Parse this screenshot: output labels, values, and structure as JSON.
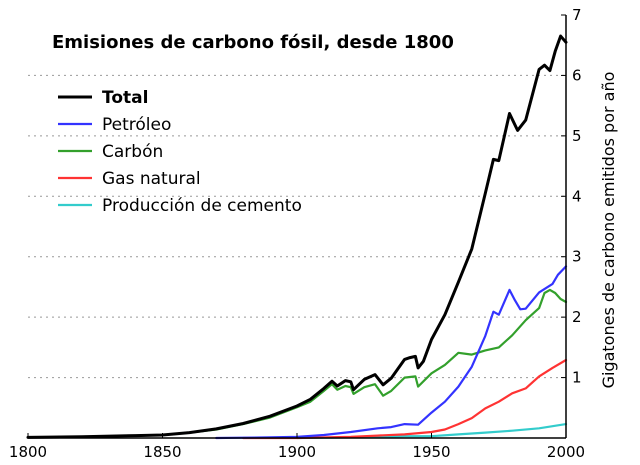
{
  "chart_data": {
    "type": "line",
    "title": "Emisiones de carbono fósil, desde  1800",
    "xlabel": "",
    "ylabel": "Gigatones de carbono emitidos por año",
    "xlim": [
      1800,
      2000
    ],
    "ylim": [
      0,
      7
    ],
    "x_ticks": [
      1800,
      1850,
      1900,
      1950,
      2000
    ],
    "y_ticks": [
      1,
      2,
      3,
      4,
      5,
      6,
      7
    ],
    "y_axis_side": "right",
    "grid": "dotted horizontal",
    "legend_position": "top-left",
    "series": [
      {
        "name": "Total",
        "color": "#000000",
        "points": [
          [
            1800,
            0.01
          ],
          [
            1820,
            0.02
          ],
          [
            1840,
            0.04
          ],
          [
            1850,
            0.05
          ],
          [
            1860,
            0.09
          ],
          [
            1870,
            0.15
          ],
          [
            1880,
            0.24
          ],
          [
            1890,
            0.36
          ],
          [
            1900,
            0.53
          ],
          [
            1905,
            0.64
          ],
          [
            1910,
            0.82
          ],
          [
            1913,
            0.94
          ],
          [
            1915,
            0.86
          ],
          [
            1918,
            0.95
          ],
          [
            1920,
            0.93
          ],
          [
            1921,
            0.8
          ],
          [
            1925,
            0.97
          ],
          [
            1929,
            1.05
          ],
          [
            1932,
            0.88
          ],
          [
            1935,
            0.99
          ],
          [
            1940,
            1.3
          ],
          [
            1942,
            1.33
          ],
          [
            1944,
            1.35
          ],
          [
            1945,
            1.16
          ],
          [
            1947,
            1.27
          ],
          [
            1950,
            1.63
          ],
          [
            1955,
            2.04
          ],
          [
            1960,
            2.58
          ],
          [
            1965,
            3.13
          ],
          [
            1970,
            4.05
          ],
          [
            1973,
            4.61
          ],
          [
            1975,
            4.59
          ],
          [
            1979,
            5.37
          ],
          [
            1982,
            5.09
          ],
          [
            1985,
            5.26
          ],
          [
            1990,
            6.1
          ],
          [
            1992,
            6.17
          ],
          [
            1994,
            6.08
          ],
          [
            1996,
            6.4
          ],
          [
            1998,
            6.65
          ],
          [
            1999,
            6.6
          ],
          [
            2000,
            6.55
          ]
        ]
      },
      {
        "name": "Petróleo",
        "color": "#3333ff",
        "points": [
          [
            1870,
            0.0
          ],
          [
            1890,
            0.01
          ],
          [
            1900,
            0.02
          ],
          [
            1910,
            0.05
          ],
          [
            1920,
            0.1
          ],
          [
            1930,
            0.16
          ],
          [
            1935,
            0.18
          ],
          [
            1940,
            0.23
          ],
          [
            1945,
            0.22
          ],
          [
            1950,
            0.42
          ],
          [
            1955,
            0.6
          ],
          [
            1960,
            0.85
          ],
          [
            1965,
            1.18
          ],
          [
            1970,
            1.69
          ],
          [
            1973,
            2.09
          ],
          [
            1975,
            2.04
          ],
          [
            1979,
            2.45
          ],
          [
            1981,
            2.28
          ],
          [
            1983,
            2.13
          ],
          [
            1985,
            2.14
          ],
          [
            1990,
            2.41
          ],
          [
            1995,
            2.55
          ],
          [
            1997,
            2.7
          ],
          [
            2000,
            2.84
          ]
        ]
      },
      {
        "name": "Carbón",
        "color": "#33a02c",
        "points": [
          [
            1800,
            0.01
          ],
          [
            1820,
            0.02
          ],
          [
            1840,
            0.04
          ],
          [
            1850,
            0.05
          ],
          [
            1860,
            0.09
          ],
          [
            1870,
            0.14
          ],
          [
            1880,
            0.23
          ],
          [
            1890,
            0.34
          ],
          [
            1900,
            0.51
          ],
          [
            1905,
            0.6
          ],
          [
            1910,
            0.78
          ],
          [
            1913,
            0.89
          ],
          [
            1915,
            0.8
          ],
          [
            1918,
            0.86
          ],
          [
            1920,
            0.84
          ],
          [
            1921,
            0.73
          ],
          [
            1925,
            0.84
          ],
          [
            1929,
            0.89
          ],
          [
            1932,
            0.7
          ],
          [
            1935,
            0.78
          ],
          [
            1940,
            1.0
          ],
          [
            1944,
            1.02
          ],
          [
            1945,
            0.85
          ],
          [
            1950,
            1.07
          ],
          [
            1955,
            1.21
          ],
          [
            1960,
            1.41
          ],
          [
            1965,
            1.38
          ],
          [
            1970,
            1.45
          ],
          [
            1975,
            1.5
          ],
          [
            1980,
            1.7
          ],
          [
            1985,
            1.95
          ],
          [
            1990,
            2.15
          ],
          [
            1992,
            2.4
          ],
          [
            1994,
            2.45
          ],
          [
            1996,
            2.4
          ],
          [
            1998,
            2.3
          ],
          [
            2000,
            2.25
          ]
        ]
      },
      {
        "name": "Gas natural",
        "color": "#ff3333",
        "points": [
          [
            1880,
            0.0
          ],
          [
            1900,
            0.0
          ],
          [
            1920,
            0.02
          ],
          [
            1930,
            0.04
          ],
          [
            1940,
            0.06
          ],
          [
            1950,
            0.1
          ],
          [
            1955,
            0.14
          ],
          [
            1960,
            0.23
          ],
          [
            1965,
            0.33
          ],
          [
            1970,
            0.49
          ],
          [
            1975,
            0.6
          ],
          [
            1980,
            0.74
          ],
          [
            1985,
            0.82
          ],
          [
            1990,
            1.02
          ],
          [
            1995,
            1.16
          ],
          [
            2000,
            1.29
          ]
        ]
      },
      {
        "name": "Producción de cemento",
        "color": "#33cccc",
        "points": [
          [
            1900,
            0.0
          ],
          [
            1920,
            0.01
          ],
          [
            1930,
            0.02
          ],
          [
            1940,
            0.03
          ],
          [
            1950,
            0.03
          ],
          [
            1960,
            0.06
          ],
          [
            1970,
            0.09
          ],
          [
            1980,
            0.12
          ],
          [
            1990,
            0.16
          ],
          [
            2000,
            0.23
          ]
        ]
      }
    ]
  }
}
